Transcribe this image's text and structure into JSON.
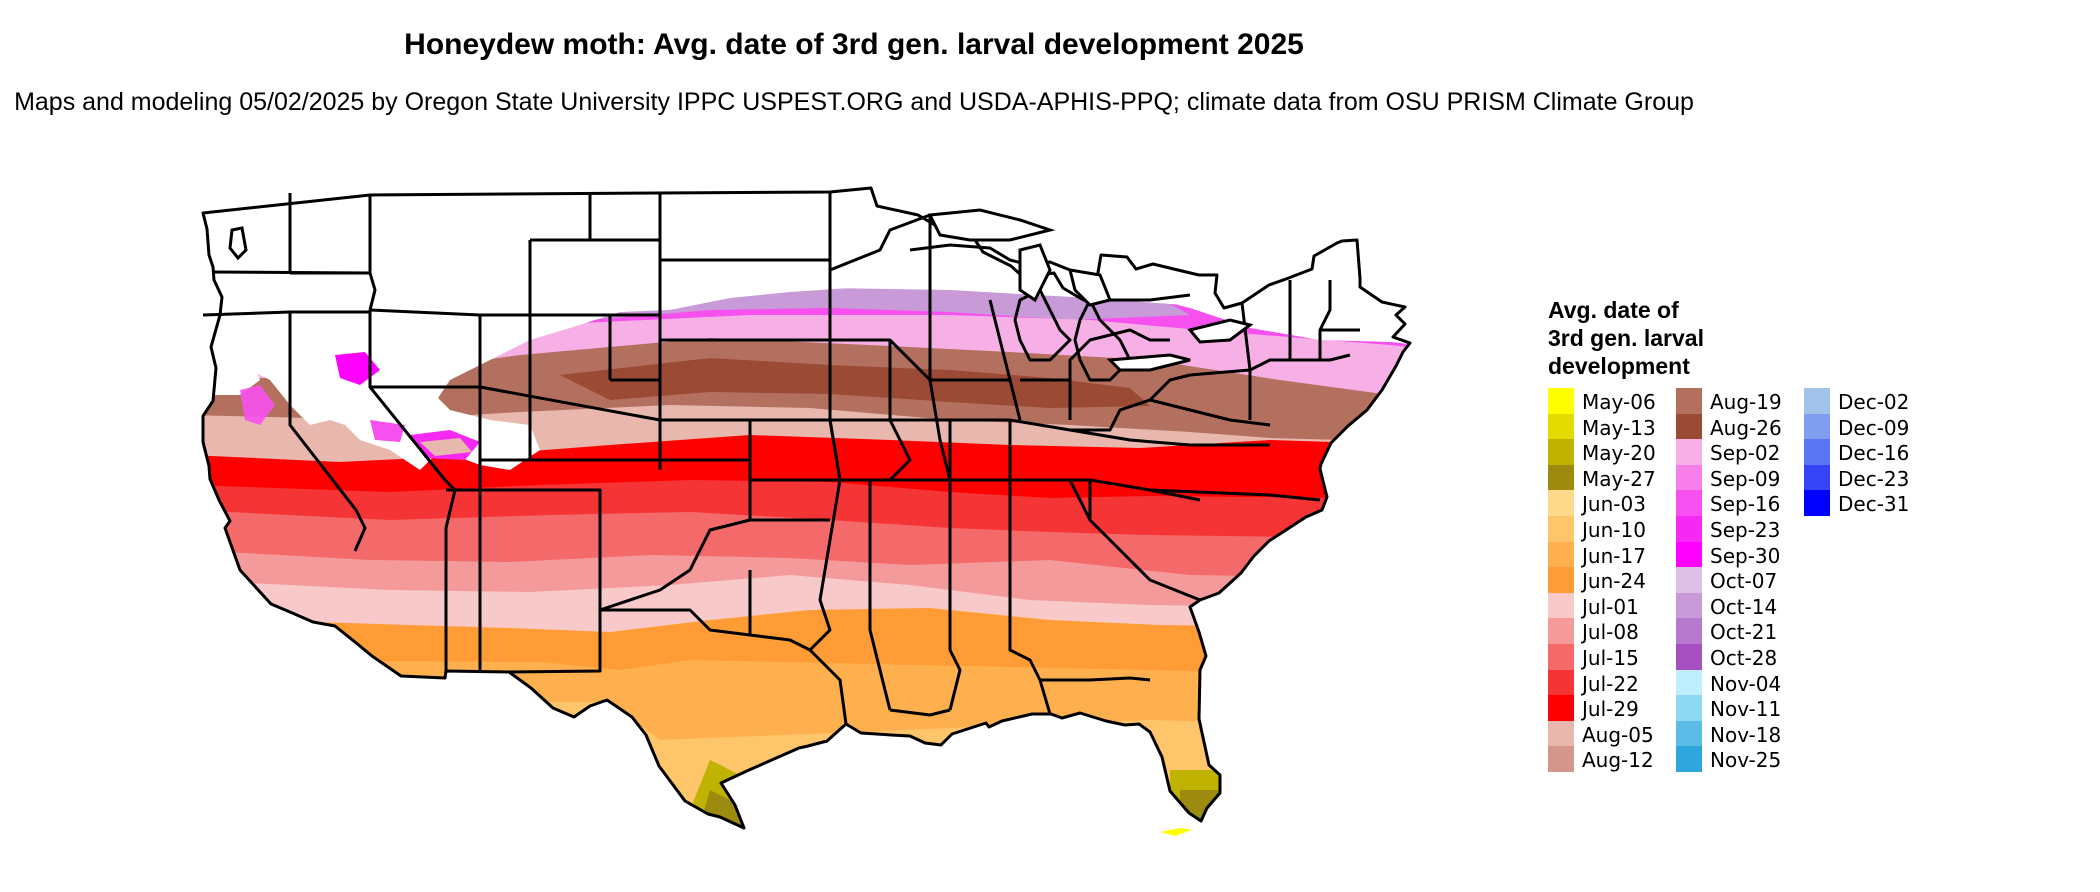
{
  "header": {
    "title": "Honeydew moth: Avg. date of 3rd gen. larval development 2025",
    "subtitle": "Maps and modeling 05/02/2025 by Oregon State University IPPC USPEST.ORG and USDA-APHIS-PPQ; climate data from OSU PRISM Climate Group"
  },
  "legend": {
    "title": "Avg. date of\n3rd gen. larval\ndevelopment",
    "columns": [
      [
        {
          "label": "May-06",
          "color": "#ffff00"
        },
        {
          "label": "May-13",
          "color": "#e2dc00"
        },
        {
          "label": "May-20",
          "color": "#bfb200"
        },
        {
          "label": "May-27",
          "color": "#9c8b0e"
        },
        {
          "label": "Jun-03",
          "color": "#ffd98c"
        },
        {
          "label": "Jun-10",
          "color": "#ffc56b"
        },
        {
          "label": "Jun-17",
          "color": "#ffb04e"
        },
        {
          "label": "Jun-24",
          "color": "#ff9c35"
        },
        {
          "label": "Jul-01",
          "color": "#f8c9c9"
        },
        {
          "label": "Jul-08",
          "color": "#f59a9a"
        },
        {
          "label": "Jul-15",
          "color": "#f46a6a"
        },
        {
          "label": "Jul-22",
          "color": "#f53535"
        },
        {
          "label": "Jul-29",
          "color": "#ff0000"
        },
        {
          "label": "Aug-05",
          "color": "#e8b7ae"
        },
        {
          "label": "Aug-12",
          "color": "#d4958a"
        }
      ],
      [
        {
          "label": "Aug-19",
          "color": "#b4705f"
        },
        {
          "label": "Aug-26",
          "color": "#9a4a35"
        },
        {
          "label": "Sep-02",
          "color": "#f7b0e6"
        },
        {
          "label": "Sep-09",
          "color": "#f77fe9"
        },
        {
          "label": "Sep-16",
          "color": "#f650ee"
        },
        {
          "label": "Sep-23",
          "color": "#f628f3"
        },
        {
          "label": "Sep-30",
          "color": "#ff00ff"
        },
        {
          "label": "Oct-07",
          "color": "#dcc0e6"
        },
        {
          "label": "Oct-14",
          "color": "#c89ad8"
        },
        {
          "label": "Oct-21",
          "color": "#b679cd"
        },
        {
          "label": "Oct-28",
          "color": "#a54fc0"
        },
        {
          "label": "Nov-04",
          "color": "#bfefff"
        },
        {
          "label": "Nov-11",
          "color": "#8dd8f3"
        },
        {
          "label": "Nov-18",
          "color": "#5bbde6"
        },
        {
          "label": "Nov-25",
          "color": "#2fa6dc"
        }
      ],
      [
        {
          "label": "Dec-02",
          "color": "#a3c2ea"
        },
        {
          "label": "Dec-09",
          "color": "#7f9ef0"
        },
        {
          "label": "Dec-16",
          "color": "#5a76f2"
        },
        {
          "label": "Dec-23",
          "color": "#3545f5"
        },
        {
          "label": "Dec-31",
          "color": "#0000ff"
        }
      ]
    ]
  }
}
